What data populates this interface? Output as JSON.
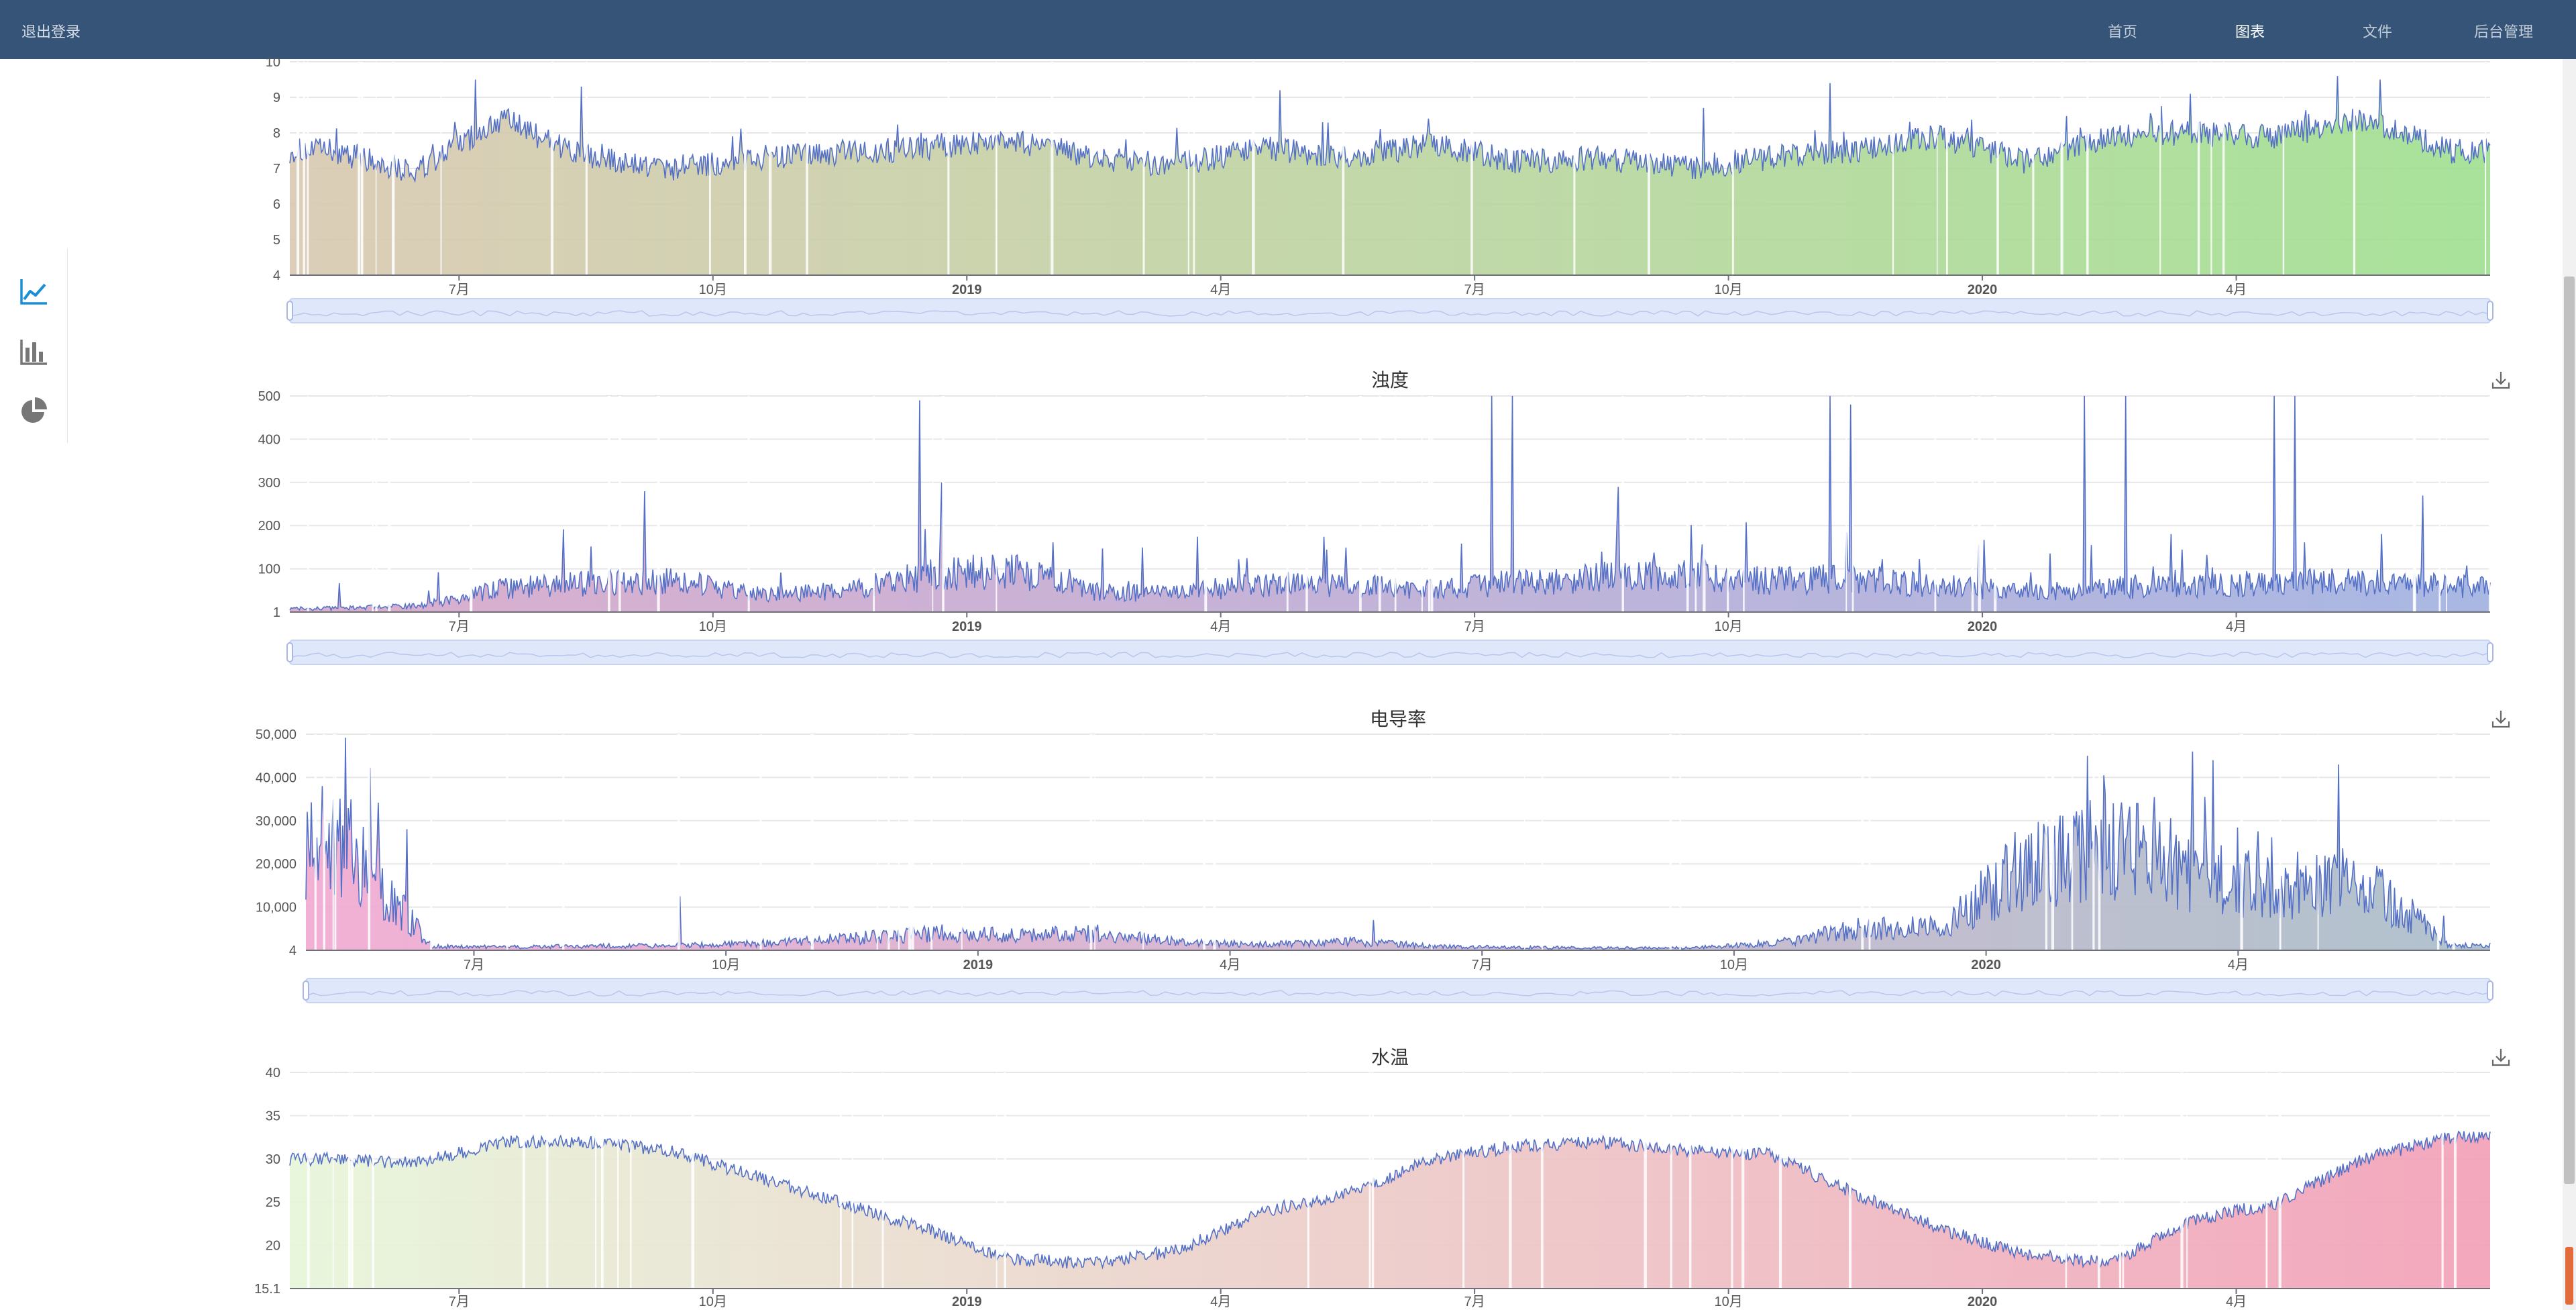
{
  "header": {
    "logout": "退出登录",
    "nav": [
      {
        "label": "首页",
        "active": false
      },
      {
        "label": "图表",
        "active": true
      },
      {
        "label": "文件",
        "active": false
      },
      {
        "label": "后台管理",
        "active": false
      }
    ]
  },
  "sidebar": {
    "icons": [
      {
        "name": "line-chart-icon",
        "active": true
      },
      {
        "name": "bar-chart-icon",
        "active": false
      },
      {
        "name": "pie-chart-icon",
        "active": false
      }
    ]
  },
  "colors": {
    "header_bg": "#355477",
    "line": "#5470c6",
    "active_icon": "#1a8fd6",
    "inactive_icon": "#777777",
    "zoom_fill": "#dfe7fb"
  },
  "chart_data": [
    {
      "type": "area",
      "title": "",
      "ylim": [
        4,
        10
      ],
      "yticks": [
        "4",
        "5",
        "6",
        "7",
        "8",
        "9",
        "10"
      ],
      "xticks": [
        {
          "label": "7月",
          "bold": false
        },
        {
          "label": "10月",
          "bold": false
        },
        {
          "label": "2019",
          "bold": true
        },
        {
          "label": "4月",
          "bold": false
        },
        {
          "label": "7月",
          "bold": false
        },
        {
          "label": "10月",
          "bold": false
        },
        {
          "label": "2020",
          "bold": true
        },
        {
          "label": "4月",
          "bold": false
        }
      ],
      "x_range": [
        "2018-05",
        "2020-06"
      ],
      "fill_gradient": [
        "#d8c8b0",
        "#9fdf8f"
      ],
      "grid": true,
      "zoom_slider": true,
      "download_icon": false,
      "series": [
        {
          "x": [
            "2018-05",
            "2018-06",
            "2018-07",
            "2018-08",
            "2018-09",
            "2018-10",
            "2018-11",
            "2018-12",
            "2019-01",
            "2019-02",
            "2019-03",
            "2019-04",
            "2019-05",
            "2019-06",
            "2019-07",
            "2019-08",
            "2019-09",
            "2019-10",
            "2019-11",
            "2019-12",
            "2020-01",
            "2020-02",
            "2020-03",
            "2020-04",
            "2020-05",
            "2020-06"
          ],
          "values": [
            7.5,
            6.9,
            8.4,
            7.3,
            7.0,
            7.3,
            7.4,
            7.6,
            7.8,
            7.3,
            7.1,
            7.6,
            7.3,
            7.7,
            7.2,
            7.3,
            7.0,
            7.3,
            7.5,
            7.9,
            7.2,
            7.9,
            8.0,
            7.9,
            8.4,
            7.5
          ],
          "spikes": [
            9.5,
            9.3,
            9.2,
            8.3,
            8.4,
            8.7,
            9.4,
            9.1,
            9.5,
            9.6
          ],
          "spike_positions": [
            "2018-07",
            "2018-08",
            "2019-04",
            "2019-05",
            "2019-06",
            "2019-09",
            "2019-11",
            "2020-03",
            "2020-05",
            "2020-05"
          ]
        }
      ]
    },
    {
      "type": "area",
      "title": "浊度",
      "ylim": [
        1,
        500
      ],
      "yticks": [
        "1",
        "100",
        "200",
        "300",
        "400",
        "500"
      ],
      "xticks": [
        {
          "label": "7月",
          "bold": false
        },
        {
          "label": "10月",
          "bold": false
        },
        {
          "label": "2019",
          "bold": true
        },
        {
          "label": "4月",
          "bold": false
        },
        {
          "label": "7月",
          "bold": false
        },
        {
          "label": "10月",
          "bold": false
        },
        {
          "label": "2020",
          "bold": true
        },
        {
          "label": "4月",
          "bold": false
        }
      ],
      "x_range": [
        "2018-05",
        "2020-06"
      ],
      "fill_gradient": [
        "#d8a6c8",
        "#9fb0e0"
      ],
      "grid": true,
      "zoom_slider": true,
      "download_icon": true,
      "series": [
        {
          "x": [
            "2018-05",
            "2018-06",
            "2018-07",
            "2018-08",
            "2018-09",
            "2018-10",
            "2018-11",
            "2018-12",
            "2019-01",
            "2019-02",
            "2019-03",
            "2019-04",
            "2019-05",
            "2019-06",
            "2019-07",
            "2019-08",
            "2019-09",
            "2019-10",
            "2019-11",
            "2019-12",
            "2020-01",
            "2020-02",
            "2020-03",
            "2020-04",
            "2020-05",
            "2020-06"
          ],
          "values": [
            8,
            12,
            45,
            55,
            60,
            35,
            40,
            70,
            80,
            40,
            35,
            55,
            50,
            45,
            55,
            70,
            75,
            60,
            65,
            50,
            40,
            45,
            50,
            55,
            60,
            50
          ],
          "spikes": [
            280,
            490,
            300,
            500,
            500,
            290,
            500,
            480,
            500,
            500,
            500,
            500,
            270
          ],
          "spike_positions": [
            "2018-09",
            "2018-12",
            "2018-12",
            "2019-07",
            "2019-07",
            "2019-08",
            "2019-11",
            "2019-11",
            "2020-02",
            "2020-02",
            "2020-04",
            "2020-04",
            "2020-06"
          ]
        }
      ]
    },
    {
      "type": "area",
      "title": "电导率",
      "ylim": [
        4,
        50000
      ],
      "yticks": [
        "4",
        "10,000",
        "20,000",
        "30,000",
        "40,000",
        "50,000"
      ],
      "xticks": [
        {
          "label": "7月",
          "bold": false
        },
        {
          "label": "10月",
          "bold": false
        },
        {
          "label": "2019",
          "bold": true
        },
        {
          "label": "4月",
          "bold": false
        },
        {
          "label": "7月",
          "bold": false
        },
        {
          "label": "10月",
          "bold": false
        },
        {
          "label": "2020",
          "bold": true
        },
        {
          "label": "4月",
          "bold": false
        }
      ],
      "x_range": [
        "2018-05",
        "2020-06"
      ],
      "fill_gradient": [
        "#f0a8d0",
        "#a8bcc8"
      ],
      "grid": true,
      "zoom_slider": true,
      "download_icon": true,
      "series": [
        {
          "x": [
            "2018-05",
            "2018-06",
            "2018-07",
            "2018-08",
            "2018-09",
            "2018-10",
            "2018-11",
            "2018-12",
            "2019-01",
            "2019-02",
            "2019-03",
            "2019-04",
            "2019-05",
            "2019-06",
            "2019-07",
            "2019-08",
            "2019-09",
            "2019-10",
            "2019-11",
            "2019-12",
            "2020-01",
            "2020-02",
            "2020-03",
            "2020-04",
            "2020-05",
            "2020-06"
          ],
          "values": [
            22000,
            800,
            700,
            900,
            1000,
            1500,
            2500,
            3500,
            3000,
            3500,
            1500,
            1200,
            1800,
            800,
            600,
            500,
            500,
            1500,
            4500,
            5000,
            18000,
            22000,
            16000,
            12000,
            15000,
            1000
          ],
          "spikes": [
            38000,
            12500,
            7000,
            45000,
            46000,
            44000,
            43000,
            8000
          ],
          "spike_positions": [
            "2018-05",
            "2018-09",
            "2019-05",
            "2020-02",
            "2020-03",
            "2020-03",
            "2020-05",
            "2020-06"
          ]
        }
      ]
    },
    {
      "type": "area",
      "title": "水温",
      "ylim": [
        15.1,
        40
      ],
      "yticks": [
        "15.1",
        "20",
        "25",
        "30",
        "35",
        "40"
      ],
      "xticks": [
        {
          "label": "7月",
          "bold": false
        },
        {
          "label": "10月",
          "bold": false
        },
        {
          "label": "2019",
          "bold": true
        },
        {
          "label": "4月",
          "bold": false
        },
        {
          "label": "7月",
          "bold": false
        },
        {
          "label": "10月",
          "bold": false
        },
        {
          "label": "2020",
          "bold": true
        },
        {
          "label": "4月",
          "bold": false
        }
      ],
      "x_range": [
        "2018-05",
        "2020-06"
      ],
      "fill_gradient": [
        "#e6f5d8",
        "#f29eb6"
      ],
      "grid": true,
      "zoom_slider": false,
      "download_icon": true,
      "series": [
        {
          "x": [
            "2018-05",
            "2018-06",
            "2018-07",
            "2018-08",
            "2018-09",
            "2018-10",
            "2018-11",
            "2018-12",
            "2019-01",
            "2019-02",
            "2019-03",
            "2019-04",
            "2019-05",
            "2019-06",
            "2019-07",
            "2019-08",
            "2019-09",
            "2019-10",
            "2019-11",
            "2019-12",
            "2020-01",
            "2020-02",
            "2020-03",
            "2020-04",
            "2020-05",
            "2020-06"
          ],
          "values": [
            30,
            29.5,
            32,
            32,
            31,
            28,
            25,
            22,
            18.5,
            18,
            19.5,
            24,
            26,
            30,
            31.5,
            32,
            31,
            30.5,
            26,
            22,
            19,
            18,
            23,
            25,
            30,
            32.5
          ],
          "spikes": [],
          "spike_positions": []
        }
      ]
    }
  ]
}
